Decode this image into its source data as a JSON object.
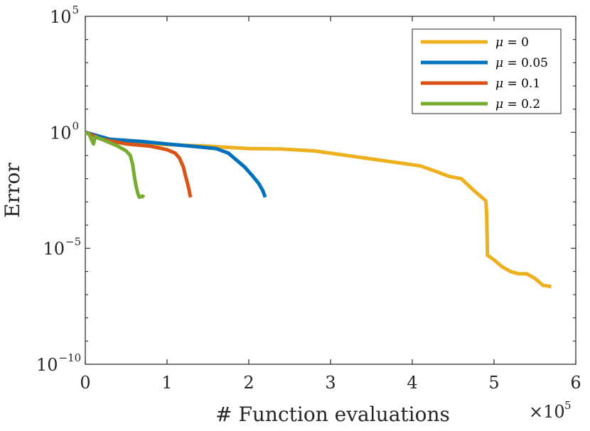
{
  "chart_data": {
    "type": "line",
    "xlabel": "# Function evaluations",
    "ylabel": "Error",
    "x_scale_label": {
      "base": "×10",
      "exponent": "5"
    },
    "x_multiplier": 100000,
    "xlim": [
      0,
      6
    ],
    "x_ticks": [
      "0",
      "1",
      "2",
      "3",
      "4",
      "5",
      "6"
    ],
    "y_scale": "log",
    "ylim_log10": [
      -10,
      5
    ],
    "y_ticks": [
      {
        "exp": 5,
        "base": "10",
        "sup": "5"
      },
      {
        "exp": 0,
        "base": "10",
        "sup": "0"
      },
      {
        "exp": -5,
        "base": "10",
        "sup": "−5"
      },
      {
        "exp": -10,
        "base": "10",
        "sup": "−10"
      }
    ],
    "legend_position": "top-right",
    "series": [
      {
        "name": "μ = 0",
        "symbol": "μ",
        "value_text": " = 0",
        "color": "#EDB120",
        "x": [
          0,
          0.3,
          0.8,
          1.5,
          2.0,
          2.4,
          2.8,
          3.2,
          3.6,
          3.9,
          4.1,
          4.3,
          4.45,
          4.6,
          4.75,
          4.85,
          4.88,
          4.9,
          4.91,
          4.92,
          5.0,
          5.1,
          5.2,
          5.3,
          5.4,
          5.5,
          5.6,
          5.7
        ],
        "log10_y": [
          0,
          -0.3,
          -0.5,
          -0.6,
          -0.7,
          -0.72,
          -0.8,
          -1.0,
          -1.2,
          -1.35,
          -1.45,
          -1.7,
          -1.9,
          -2.0,
          -2.5,
          -2.8,
          -2.9,
          -2.95,
          -3.5,
          -5.3,
          -5.5,
          -5.8,
          -6.0,
          -6.1,
          -6.1,
          -6.3,
          -6.6,
          -6.65
        ]
      },
      {
        "name": "μ = 0.05",
        "symbol": "μ",
        "value_text": " = 0.05",
        "color": "#0072BD",
        "x": [
          0,
          0.3,
          0.7,
          1.0,
          1.3,
          1.6,
          1.75,
          1.85,
          1.95,
          2.05,
          2.12,
          2.17,
          2.19,
          2.2
        ],
        "log10_y": [
          0,
          -0.3,
          -0.4,
          -0.5,
          -0.6,
          -0.7,
          -0.9,
          -1.2,
          -1.5,
          -1.9,
          -2.2,
          -2.5,
          -2.7,
          -2.8
        ]
      },
      {
        "name": "μ = 0.1",
        "symbol": "μ",
        "value_text": " = 0.1",
        "color": "#D95319",
        "x": [
          0,
          0.2,
          0.5,
          0.8,
          1.0,
          1.1,
          1.15,
          1.2,
          1.22,
          1.25,
          1.27,
          1.28,
          1.29
        ],
        "log10_y": [
          0,
          -0.3,
          -0.5,
          -0.6,
          -0.75,
          -0.9,
          -1.1,
          -1.5,
          -1.8,
          -2.2,
          -2.5,
          -2.7,
          -2.8
        ]
      },
      {
        "name": "μ = 0.2",
        "symbol": "μ",
        "value_text": " = 0.2",
        "color": "#77AC30",
        "x": [
          0,
          0.05,
          0.08,
          0.1,
          0.12,
          0.2,
          0.3,
          0.4,
          0.5,
          0.55,
          0.58,
          0.6,
          0.62,
          0.64,
          0.66,
          0.7,
          0.72
        ],
        "log10_y": [
          0,
          -0.1,
          -0.35,
          -0.5,
          -0.2,
          -0.3,
          -0.45,
          -0.6,
          -0.8,
          -1.0,
          -1.4,
          -1.9,
          -2.3,
          -2.6,
          -2.8,
          -2.75,
          -2.8
        ]
      }
    ]
  }
}
